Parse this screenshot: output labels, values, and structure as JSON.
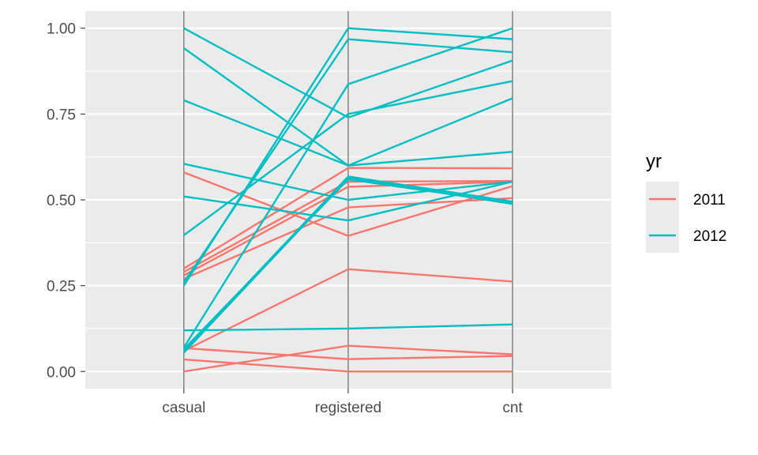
{
  "chart_data": {
    "type": "line",
    "subtype": "parallel-coordinates",
    "categories": [
      "casual",
      "registered",
      "cnt"
    ],
    "ylim": [
      -0.05,
      1.05
    ],
    "yticks": [
      0.0,
      0.25,
      0.5,
      0.75,
      1.0
    ],
    "ytick_labels": [
      "0.00",
      "0.25",
      "0.50",
      "0.75",
      "1.00"
    ],
    "grid": true,
    "legend": {
      "title": "yr",
      "position": "right",
      "entries": [
        {
          "label": "2011",
          "color": "#F8766D"
        },
        {
          "label": "2012",
          "color": "#00BFC4"
        }
      ]
    },
    "series": [
      {
        "group": "2011",
        "values": [
          0.58,
          0.395,
          0.54
        ]
      },
      {
        "group": "2011",
        "values": [
          0.3,
          0.593,
          0.592
        ]
      },
      {
        "group": "2011",
        "values": [
          0.29,
          0.553,
          0.555
        ]
      },
      {
        "group": "2011",
        "values": [
          0.28,
          0.538,
          0.553
        ]
      },
      {
        "group": "2011",
        "values": [
          0.27,
          0.478,
          0.505
        ]
      },
      {
        "group": "2011",
        "values": [
          0.06,
          0.298,
          0.262
        ]
      },
      {
        "group": "2011",
        "values": [
          0.068,
          0.036,
          0.045
        ]
      },
      {
        "group": "2011",
        "values": [
          0.035,
          0.0,
          0.0
        ]
      },
      {
        "group": "2011",
        "values": [
          0.0,
          0.075,
          0.05
        ]
      },
      {
        "group": "2012",
        "values": [
          1.0,
          0.74,
          0.906
        ]
      },
      {
        "group": "2012",
        "values": [
          0.942,
          0.6,
          0.796
        ]
      },
      {
        "group": "2012",
        "values": [
          0.79,
          0.6,
          0.64
        ]
      },
      {
        "group": "2012",
        "values": [
          0.605,
          0.5,
          0.553
        ]
      },
      {
        "group": "2012",
        "values": [
          0.51,
          0.44,
          0.553
        ]
      },
      {
        "group": "2012",
        "values": [
          0.397,
          0.75,
          0.846
        ]
      },
      {
        "group": "2012",
        "values": [
          0.26,
          0.968,
          0.93
        ]
      },
      {
        "group": "2012",
        "values": [
          0.25,
          1.0,
          0.968
        ]
      },
      {
        "group": "2012",
        "values": [
          0.07,
          0.837,
          1.0
        ]
      },
      {
        "group": "2012",
        "values": [
          0.065,
          0.56,
          0.49
        ]
      },
      {
        "group": "2012",
        "values": [
          0.06,
          0.568,
          0.495
        ]
      },
      {
        "group": "2012",
        "values": [
          0.055,
          0.564,
          0.488
        ]
      },
      {
        "group": "2012",
        "values": [
          0.12,
          0.125,
          0.137
        ]
      }
    ]
  }
}
